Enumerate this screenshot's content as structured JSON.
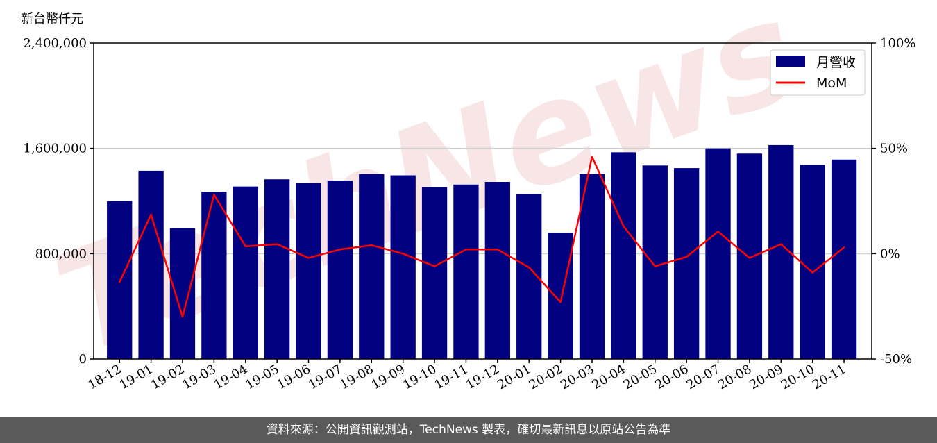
{
  "chart_data": {
    "type": "bar",
    "y_unit_label": "新台幣仟元",
    "categories": [
      "18-12",
      "19-01",
      "19-02",
      "19-03",
      "19-04",
      "19-05",
      "19-06",
      "19-07",
      "19-08",
      "19-09",
      "19-10",
      "19-11",
      "19-12",
      "20-01",
      "20-02",
      "20-03",
      "20-04",
      "20-05",
      "20-06",
      "20-07",
      "20-08",
      "20-09",
      "20-10",
      "20-11"
    ],
    "series": [
      {
        "name": "月營收",
        "axis": "left",
        "color": "#000080",
        "values": [
          1200000,
          1430000,
          995000,
          1270000,
          1310000,
          1365000,
          1335000,
          1355000,
          1405000,
          1395000,
          1305000,
          1325000,
          1345000,
          1255000,
          960000,
          1405000,
          1570000,
          1470000,
          1450000,
          1600000,
          1560000,
          1625000,
          1475000,
          1515000
        ]
      },
      {
        "name": "MoM",
        "axis": "right",
        "color": "#ff0000",
        "values": [
          -13.5,
          18.5,
          -30,
          28,
          3.5,
          4.5,
          -2,
          2,
          4,
          0,
          -6,
          2,
          2,
          -6.5,
          -23,
          46,
          13,
          -6,
          -1.5,
          10.5,
          -2,
          4.5,
          -9,
          3
        ]
      }
    ],
    "y_left": {
      "min": 0,
      "max": 2400000,
      "ticks": [
        "0",
        "800,000",
        "1,600,000",
        "2,400,000"
      ],
      "tick_values": [
        0,
        800000,
        1600000,
        2400000
      ]
    },
    "y_right": {
      "min": -50,
      "max": 100,
      "ticks": [
        "-50%",
        "0%",
        "50%",
        "100%"
      ],
      "tick_values": [
        -50,
        0,
        50,
        100
      ]
    },
    "grid": "horizontal",
    "legend_position": "top-right",
    "watermark": "TechNews"
  },
  "footer": {
    "text": "資料來源：公開資訊觀測站，TechNews 製表，確切最新訊息以原站公告為準"
  }
}
